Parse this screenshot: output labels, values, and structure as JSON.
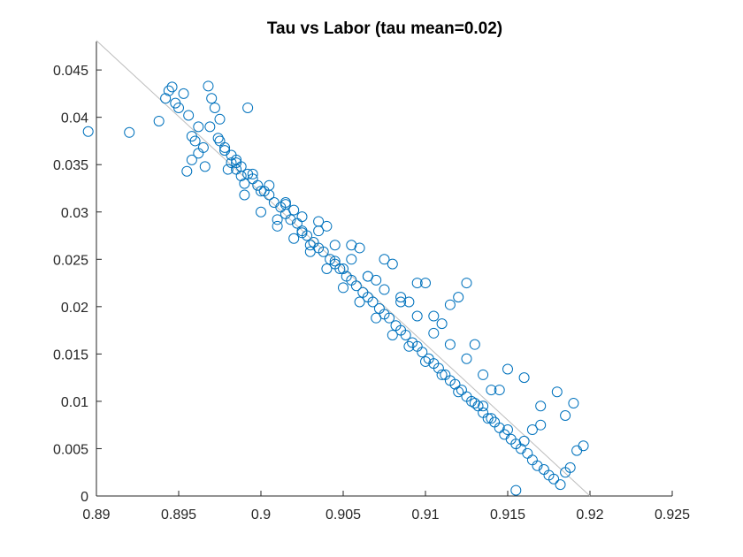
{
  "chart_data": {
    "type": "scatter",
    "title": "Tau vs Labor (tau mean=0.02)",
    "xlabel": "",
    "ylabel": "",
    "xlim": [
      0.89,
      0.925
    ],
    "ylim": [
      0,
      0.048
    ],
    "x_ticks": [
      0.89,
      0.895,
      0.9,
      0.905,
      0.91,
      0.915,
      0.92,
      0.925
    ],
    "x_tick_labels": [
      "0.89",
      "0.895",
      "0.9",
      "0.905",
      "0.91",
      "0.915",
      "0.92",
      "0.925"
    ],
    "y_ticks": [
      0,
      0.005,
      0.01,
      0.015,
      0.02,
      0.025,
      0.03,
      0.035,
      0.04,
      0.045
    ],
    "y_tick_labels": [
      "0",
      "0.005",
      "0.01",
      "0.015",
      "0.02",
      "0.025",
      "0.03",
      "0.035",
      "0.04",
      "0.045"
    ],
    "grid": false,
    "legend": "none",
    "marker": "circle-open",
    "marker_color": "#0072BD",
    "fit_line_color": "#BDBDBD",
    "reference_line": {
      "x": [
        0.89,
        0.92
      ],
      "y": [
        0.0481,
        0.0
      ]
    },
    "series": [
      {
        "x": [
          0.8938,
          0.8942,
          0.8944,
          0.8946,
          0.8948,
          0.895,
          0.8953,
          0.8956,
          0.8958,
          0.896,
          0.8962,
          0.8965,
          0.8968,
          0.897,
          0.8972,
          0.8975,
          0.8955,
          0.8958,
          0.8962,
          0.8966,
          0.8969,
          0.8974,
          0.8978,
          0.8982,
          0.8985,
          0.8988,
          0.899,
          0.8992,
          0.8895,
          0.892,
          0.8975,
          0.8978,
          0.8982,
          0.8985,
          0.8988,
          0.8992,
          0.8995,
          0.8998,
          0.9002,
          0.9005,
          0.9008,
          0.9012,
          0.9015,
          0.9018,
          0.9022,
          0.9025,
          0.9028,
          0.9032,
          0.9035,
          0.9038,
          0.9042,
          0.9045,
          0.9048,
          0.9052,
          0.9055,
          0.9058,
          0.9062,
          0.9065,
          0.9068,
          0.9072,
          0.9075,
          0.9078,
          0.9082,
          0.9085,
          0.9088,
          0.9092,
          0.9095,
          0.9098,
          0.9102,
          0.9105,
          0.9108,
          0.9112,
          0.9115,
          0.9118,
          0.9122,
          0.9125,
          0.9128,
          0.9132,
          0.9135,
          0.9138,
          0.9142,
          0.9145,
          0.9148,
          0.9152,
          0.9155,
          0.9158,
          0.9162,
          0.9165,
          0.9168,
          0.9172,
          0.9175,
          0.9178,
          0.9182,
          0.9185,
          0.9188,
          0.9192,
          0.9196,
          0.9165,
          0.917,
          0.918,
          0.919,
          0.9135,
          0.914,
          0.915,
          0.916,
          0.9155,
          0.917,
          0.9185,
          0.912,
          0.9125,
          0.8985,
          0.8995,
          0.9005,
          0.9015,
          0.9025,
          0.9035,
          0.9045,
          0.9055,
          0.9065,
          0.9075,
          0.9085,
          0.9095,
          0.9105,
          0.9115,
          0.9125,
          0.9135,
          0.9145,
          0.901,
          0.903,
          0.905,
          0.907,
          0.909,
          0.911,
          0.913,
          0.904,
          0.906,
          0.908,
          0.91,
          0.902,
          0.9,
          0.899,
          0.9,
          0.901,
          0.902,
          0.903,
          0.904,
          0.905,
          0.906,
          0.907,
          0.908,
          0.909,
          0.91,
          0.911,
          0.912,
          0.913,
          0.914,
          0.915,
          0.916,
          0.9015,
          0.9035,
          0.9055,
          0.9075,
          0.9095,
          0.9115,
          0.9045,
          0.9065,
          0.9085,
          0.9105,
          0.9025,
          0.898
        ],
        "y": [
          0.0396,
          0.042,
          0.0428,
          0.0432,
          0.0415,
          0.041,
          0.0425,
          0.0402,
          0.038,
          0.0375,
          0.039,
          0.0368,
          0.0433,
          0.042,
          0.041,
          0.0398,
          0.0343,
          0.0355,
          0.0362,
          0.0348,
          0.039,
          0.0378,
          0.0365,
          0.0352,
          0.0345,
          0.0338,
          0.033,
          0.041,
          0.0385,
          0.0384,
          0.0375,
          0.0368,
          0.036,
          0.0352,
          0.0348,
          0.034,
          0.0335,
          0.0328,
          0.0322,
          0.0318,
          0.031,
          0.0305,
          0.0298,
          0.0292,
          0.0288,
          0.028,
          0.0275,
          0.0268,
          0.0262,
          0.0258,
          0.025,
          0.0245,
          0.024,
          0.0232,
          0.0228,
          0.0222,
          0.0215,
          0.021,
          0.0205,
          0.0198,
          0.0192,
          0.0188,
          0.018,
          0.0175,
          0.017,
          0.0162,
          0.0158,
          0.0152,
          0.0145,
          0.014,
          0.0135,
          0.0128,
          0.0122,
          0.0118,
          0.0112,
          0.0105,
          0.01,
          0.0095,
          0.0088,
          0.0082,
          0.0078,
          0.0072,
          0.0065,
          0.006,
          0.0055,
          0.005,
          0.0045,
          0.0038,
          0.0032,
          0.0028,
          0.0022,
          0.0018,
          0.0012,
          0.0025,
          0.003,
          0.0048,
          0.0053,
          0.007,
          0.0095,
          0.011,
          0.0098,
          0.0095,
          0.0112,
          0.0134,
          0.0125,
          0.0006,
          0.0075,
          0.0085,
          0.021,
          0.0225,
          0.0355,
          0.034,
          0.0328,
          0.0308,
          0.0295,
          0.028,
          0.0265,
          0.025,
          0.0232,
          0.0218,
          0.0205,
          0.019,
          0.0172,
          0.016,
          0.0145,
          0.0128,
          0.0112,
          0.0285,
          0.0265,
          0.024,
          0.0228,
          0.0205,
          0.0182,
          0.016,
          0.0285,
          0.0262,
          0.0245,
          0.0225,
          0.0302,
          0.0322,
          0.0318,
          0.03,
          0.0292,
          0.0272,
          0.0258,
          0.024,
          0.022,
          0.0205,
          0.0188,
          0.017,
          0.0158,
          0.0142,
          0.0128,
          0.011,
          0.0098,
          0.0082,
          0.007,
          0.0058,
          0.031,
          0.029,
          0.0265,
          0.025,
          0.0225,
          0.0202,
          0.0248,
          0.0232,
          0.021,
          0.019,
          0.0278,
          0.0345
        ]
      }
    ]
  }
}
